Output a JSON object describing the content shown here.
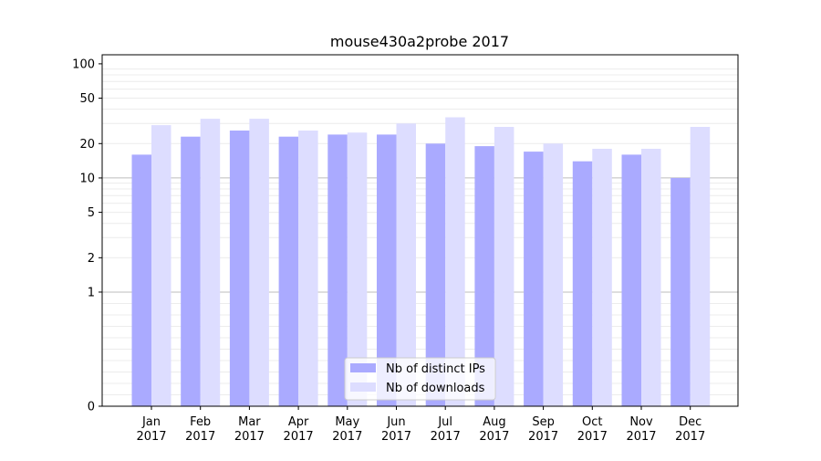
{
  "chart_data": {
    "type": "bar",
    "title": "mouse430a2probe 2017",
    "xlabel": "",
    "ylabel": "",
    "y_scale": "symlog",
    "ylim": [
      0,
      120
    ],
    "y_ticks": [
      0,
      1,
      2,
      5,
      10,
      20,
      50,
      100
    ],
    "grid": "y minor lines; major lines at 1 and 10",
    "categories": [
      "Jan\n2017",
      "Feb\n2017",
      "Mar\n2017",
      "Apr\n2017",
      "May\n2017",
      "Jun\n2017",
      "Jul\n2017",
      "Aug\n2017",
      "Sep\n2017",
      "Oct\n2017",
      "Nov\n2017",
      "Dec\n2017"
    ],
    "series": [
      {
        "name": "Nb of distinct IPs",
        "color": "#aaaaff",
        "values": [
          16,
          23,
          26,
          23,
          24,
          24,
          20,
          19,
          17,
          14,
          16,
          10
        ]
      },
      {
        "name": "Nb of downloads",
        "color": "#ddddff",
        "values": [
          29,
          33,
          33,
          26,
          25,
          30,
          34,
          28,
          20,
          18,
          18,
          28
        ]
      }
    ],
    "legend_position": "bottom-center"
  }
}
